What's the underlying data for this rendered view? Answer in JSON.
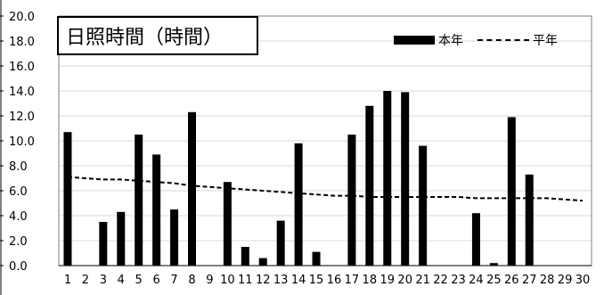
{
  "chart_data": {
    "type": "bar",
    "title": "日照時間（時間）",
    "xlabel": "",
    "ylabel": "",
    "ylim": [
      0,
      20
    ],
    "yticks": [
      "0.0",
      "2.0",
      "4.0",
      "6.0",
      "8.0",
      "10.0",
      "12.0",
      "14.0",
      "16.0",
      "18.0",
      "20.0"
    ],
    "categories": [
      "1",
      "2",
      "3",
      "4",
      "5",
      "6",
      "7",
      "8",
      "9",
      "10",
      "11",
      "12",
      "13",
      "14",
      "15",
      "16",
      "17",
      "18",
      "19",
      "20",
      "21",
      "22",
      "23",
      "24",
      "25",
      "26",
      "27",
      "28",
      "29",
      "30"
    ],
    "grid": true,
    "legend_position": "top-right",
    "series": [
      {
        "name": "本年",
        "kind": "bar",
        "values": [
          10.7,
          0,
          3.5,
          4.3,
          10.5,
          8.9,
          4.5,
          12.3,
          0,
          6.7,
          1.5,
          0.6,
          3.6,
          9.8,
          1.1,
          0,
          10.5,
          12.8,
          14.0,
          13.9,
          9.6,
          0,
          0,
          4.2,
          0.2,
          11.9,
          7.3,
          0,
          0,
          0
        ]
      },
      {
        "name": "平年",
        "kind": "dashed-line",
        "values": [
          7.1,
          7.0,
          6.9,
          6.9,
          6.8,
          6.7,
          6.6,
          6.4,
          6.3,
          6.2,
          6.1,
          6.0,
          5.9,
          5.8,
          5.7,
          5.6,
          5.6,
          5.5,
          5.5,
          5.5,
          5.5,
          5.5,
          5.5,
          5.4,
          5.4,
          5.4,
          5.4,
          5.4,
          5.3,
          5.2
        ]
      }
    ]
  },
  "colors": {
    "bar": "#000000",
    "line": "#000000",
    "grid": "#d9d9d9",
    "axis": "#000000"
  }
}
